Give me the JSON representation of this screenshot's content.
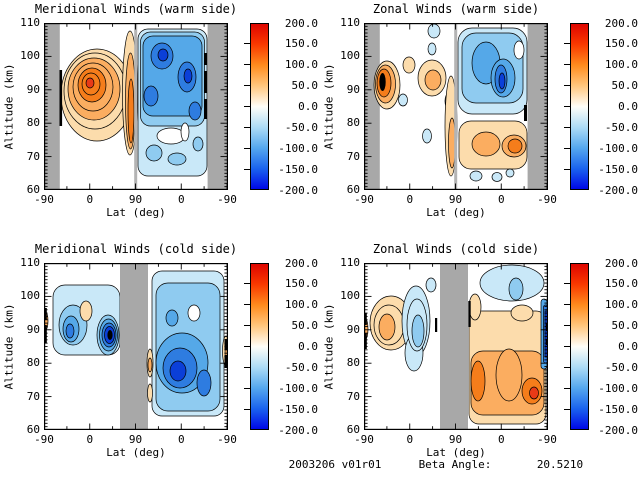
{
  "panels": [
    {
      "title": "Meridional Winds (warm side)"
    },
    {
      "title": "Zonal Winds (warm side)"
    },
    {
      "title": "Meridional Winds (cold side)"
    },
    {
      "title": "Zonal Winds (cold side)"
    }
  ],
  "axes": {
    "xlabel": "Lat (deg)",
    "ylabel": "Altitude (km)",
    "xtick_labels": [
      "-90",
      "0",
      "90",
      "0",
      "-90"
    ],
    "ytick_labels": [
      "110",
      "100",
      "90",
      "80",
      "70",
      "60"
    ]
  },
  "colorbar": {
    "tick_labels": [
      "200.0",
      "150.0",
      "100.0",
      "50.0",
      "0.0",
      "-50.0",
      "-100.0",
      "-150.0",
      "-200.0"
    ],
    "gradient": [
      "#DE0500",
      "#F93A00",
      "#FF8C1E",
      "#FFC77E",
      "#FFFEF8",
      "#AEDCF6",
      "#56A8EE",
      "#1B64EE",
      "#0008E6"
    ]
  },
  "footer": {
    "date_version": "2003206 v01r01",
    "beta_label": "Beta Angle:",
    "beta_value": "20.5210"
  },
  "palette": {
    "p1": "#FCDCAC",
    "p2": "#FBAD60",
    "p3": "#F57D1B",
    "p4": "#E83A17",
    "n1": "#C9E8F8",
    "n2": "#8FCBF0",
    "n3": "#55A8E8",
    "n4": "#2E7CE0",
    "n5": "#0B3FD8",
    "blk": "#000000",
    "gray": "#A8A8A8",
    "div": "#B4B4B4",
    "white": "#FFFFFF"
  },
  "chart_data": [
    {
      "type": "contour",
      "panel": "top-left",
      "title": "Meridional Winds (warm side)",
      "xlabel": "Lat (deg)",
      "ylabel": "Altitude (km)",
      "x_structure": "two half-orbit segments: left half ascending lat -90 to 90, right half descending lat 90 to -90",
      "xticks": [
        -90,
        0,
        90,
        0,
        -90
      ],
      "yticks": [
        60,
        70,
        80,
        90,
        100,
        110
      ],
      "ylim": [
        60,
        110
      ],
      "colorbar_range": [
        -200,
        200
      ],
      "colorbar_ticks": [
        200,
        150,
        100,
        50,
        0,
        -50,
        -100,
        -150,
        -200
      ],
      "no_data_regions": "gray vertical bands at far left and far right edges (near lat -90 of each segment)",
      "features": [
        {
          "sign": "positive",
          "approx_peak": 150,
          "region": "ascending lat -40..60, alt 80..103, core near lat 5 alt 92"
        },
        {
          "sign": "positive",
          "approx_peak": 100,
          "region": "ascending lat 70..90, alt 62..108 vertical band"
        },
        {
          "sign": "negative",
          "approx_peak": -150,
          "region": "descending lat 90..-55, alt 83..110, cores near lat 45 alt 100 and lat 0 alt 94"
        },
        {
          "sign": "negative",
          "approx_peak": -75,
          "region": "descending lat 90..-60, alt 62..83, weaker with white holes near alt 77"
        },
        {
          "sign": "off-scale",
          "region": "black contour marks at data edges near lat -65 (both segments), alt 85..102"
        }
      ]
    },
    {
      "type": "contour",
      "panel": "top-right",
      "title": "Zonal Winds (warm side)",
      "xlabel": "Lat (deg)",
      "ylabel": "Altitude (km)",
      "x_structure": "two half-orbit segments: ascending -90 to 90 then descending 90 to -90",
      "xticks": [
        -90,
        0,
        90,
        0,
        -90
      ],
      "yticks": [
        60,
        70,
        80,
        90,
        100,
        110
      ],
      "ylim": [
        60,
        110
      ],
      "colorbar_range": [
        -200,
        200
      ],
      "colorbar_ticks": [
        200,
        150,
        100,
        50,
        0,
        -50,
        -100,
        -150,
        -200
      ],
      "no_data_regions": "gray vertical bands at far left and far right edges",
      "features": [
        {
          "sign": "positive",
          "approx_peak": 200,
          "region": "tight cell with black core at ascending data edge lat ~-65, alt 87..98"
        },
        {
          "sign": "positive",
          "approx_peak": 100,
          "region": "ascending lat 20..65, alt 85..102 scattered cells"
        },
        {
          "sign": "negative",
          "approx_peak": -50,
          "region": "small ascending cells near lat -10 alt 89, lat 20 alt 75, lat 55 alt 105..110"
        },
        {
          "sign": "negative",
          "approx_peak": -150,
          "region": "descending lat 90..-50, alt 84..110, core near lat 10 alt 93"
        },
        {
          "sign": "positive",
          "approx_peak": 150,
          "region": "descending lat 90..-70, alt 68..83, cores near lat 10 alt 75 and lat -25 alt 74"
        },
        {
          "sign": "negative",
          "approx_peak": -50,
          "region": "small descending blobs alt 62..67"
        }
      ]
    },
    {
      "type": "contour",
      "panel": "bottom-left",
      "title": "Meridional Winds (cold side)",
      "xlabel": "Lat (deg)",
      "ylabel": "Altitude (km)",
      "x_structure": "two half-orbit segments: ascending -90 to 90 then descending 90 to -90",
      "xticks": [
        -90,
        0,
        90,
        0,
        -90
      ],
      "yticks": [
        60,
        70,
        80,
        90,
        100,
        110
      ],
      "ylim": [
        60,
        110
      ],
      "colorbar_range": [
        -200,
        200
      ],
      "colorbar_ticks": [
        200,
        150,
        100,
        50,
        0,
        -50,
        -100,
        -150,
        -200
      ],
      "no_data_regions": "single gray vertical band in the middle spanning the lat-90 turn (ascending lat ~60 through descending lat ~75)",
      "features": [
        {
          "sign": "negative",
          "approx_peak": -100,
          "region": "ascending lat -60..-10, alt 83..102"
        },
        {
          "sign": "negative",
          "approx_peak": -200,
          "region": "tight dense-ringed cell with black core, ascending lat 25..45, alt 84..98"
        },
        {
          "sign": "positive",
          "approx_peak": 25,
          "region": "small cell ascending lat ~5, alt ~96"
        },
        {
          "sign": "negative",
          "approx_peak": -150,
          "region": "descending lat 75..-60, alt 64..109 broad region, darkest lat 10..40 alt 73..84"
        },
        {
          "sign": "positive",
          "approx_peak": 50,
          "region": "thin slivers at descending segment edges alt 70..95"
        },
        {
          "sign": "off-scale",
          "region": "black marks at left axis (alt 88..96) and right axis (alt 85..95)"
        }
      ]
    },
    {
      "type": "contour",
      "panel": "bottom-right",
      "title": "Zonal Winds (cold side)",
      "xlabel": "Lat (deg)",
      "ylabel": "Altitude (km)",
      "x_structure": "two half-orbit segments: ascending -90 to 90 then descending 90 to -90",
      "xticks": [
        -90,
        0,
        90,
        0,
        -90
      ],
      "yticks": [
        60,
        70,
        80,
        90,
        100,
        110
      ],
      "ylim": [
        60,
        110
      ],
      "colorbar_range": [
        -200,
        200
      ],
      "colorbar_ticks": [
        200,
        150,
        100,
        50,
        0,
        -50,
        -100,
        -150,
        -200
      ],
      "no_data_regions": "single gray vertical band in the middle spanning the lat-90 turn",
      "features": [
        {
          "sign": "positive",
          "approx_peak": 50,
          "region": "ascending lat -75..-35, alt 84..101"
        },
        {
          "sign": "negative",
          "approx_peak": -50,
          "region": "ascending lat -25..25, alt 77..104, core near lat 5 alt 90"
        },
        {
          "sign": "positive",
          "approx_peak": 150,
          "region": "descending lat 75..-85, alt 62..101 broad region, cores near lat 60 alt 75 and lat -55 alt 72"
        },
        {
          "sign": "negative",
          "approx_peak": -50,
          "region": "descending lat 35..-70, alt 100..110"
        },
        {
          "sign": "negative",
          "approx_peak": -200,
          "region": "dark-blue/black speckled strip at descending data edge lat ~-85, alt 78..100"
        },
        {
          "sign": "off-scale",
          "region": "black marks at left axis alt 88..95 and at descending segment start alt 92..100"
        }
      ]
    }
  ]
}
